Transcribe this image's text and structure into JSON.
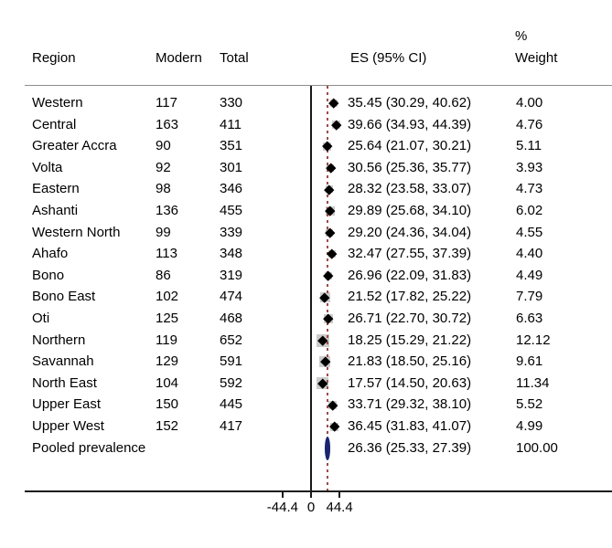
{
  "chart_data": {
    "type": "forest",
    "description": "Forest plot of modern contraceptive prevalence by region with pooled estimate",
    "columns": {
      "region": "Region",
      "modern": "Modern",
      "total": "Total",
      "es": "ES (95% CI)",
      "weight_pct": "%",
      "weight": "Weight"
    },
    "axis": {
      "ticks": [
        -44.4,
        0,
        44.4
      ],
      "tick_labels": [
        "-44.4",
        "0",
        "44.4"
      ],
      "xlim": [
        -44.4,
        44.4
      ],
      "grid": false,
      "pooled_reference_value": 26.36
    },
    "colors": {
      "marker": "#000000",
      "weight_box": "#cbcbcb",
      "pooled_marker": "#1a2470",
      "dashed_line": "#a04a4a",
      "axis_line": "#1a1a1a",
      "header_line": "#8c8c8c"
    },
    "rows": [
      {
        "region": "Western",
        "modern": "117",
        "total": "330",
        "es": 35.45,
        "lo": 30.29,
        "hi": 40.62,
        "es_label": "35.45 (30.29, 40.62)",
        "weight": 4.0,
        "weight_label": "4.00",
        "pooled": false
      },
      {
        "region": "Central",
        "modern": "163",
        "total": "411",
        "es": 39.66,
        "lo": 34.93,
        "hi": 44.39,
        "es_label": "39.66 (34.93, 44.39)",
        "weight": 4.76,
        "weight_label": "4.76",
        "pooled": false
      },
      {
        "region": "Greater Accra",
        "modern": "90",
        "total": "351",
        "es": 25.64,
        "lo": 21.07,
        "hi": 30.21,
        "es_label": "25.64 (21.07, 30.21)",
        "weight": 5.11,
        "weight_label": "5.11",
        "pooled": false
      },
      {
        "region": "Volta",
        "modern": "92",
        "total": "301",
        "es": 30.56,
        "lo": 25.36,
        "hi": 35.77,
        "es_label": "30.56 (25.36, 35.77)",
        "weight": 3.93,
        "weight_label": "3.93",
        "pooled": false
      },
      {
        "region": "Eastern",
        "modern": "98",
        "total": "346",
        "es": 28.32,
        "lo": 23.58,
        "hi": 33.07,
        "es_label": "28.32 (23.58, 33.07)",
        "weight": 4.73,
        "weight_label": "4.73",
        "pooled": false
      },
      {
        "region": "Ashanti",
        "modern": "136",
        "total": "455",
        "es": 29.89,
        "lo": 25.68,
        "hi": 34.1,
        "es_label": "29.89 (25.68, 34.10)",
        "weight": 6.02,
        "weight_label": "6.02",
        "pooled": false
      },
      {
        "region": "Western North",
        "modern": "99",
        "total": "339",
        "es": 29.2,
        "lo": 24.36,
        "hi": 34.04,
        "es_label": "29.20 (24.36, 34.04)",
        "weight": 4.55,
        "weight_label": "4.55",
        "pooled": false
      },
      {
        "region": "Ahafo",
        "modern": "113",
        "total": "348",
        "es": 32.47,
        "lo": 27.55,
        "hi": 37.39,
        "es_label": "32.47 (27.55, 37.39)",
        "weight": 4.4,
        "weight_label": "4.40",
        "pooled": false
      },
      {
        "region": "Bono",
        "modern": "86",
        "total": "319",
        "es": 26.96,
        "lo": 22.09,
        "hi": 31.83,
        "es_label": "26.96 (22.09, 31.83)",
        "weight": 4.49,
        "weight_label": "4.49",
        "pooled": false
      },
      {
        "region": "Bono East",
        "modern": "102",
        "total": "474",
        "es": 21.52,
        "lo": 17.82,
        "hi": 25.22,
        "es_label": "21.52 (17.82, 25.22)",
        "weight": 7.79,
        "weight_label": "7.79",
        "pooled": false
      },
      {
        "region": "Oti",
        "modern": "125",
        "total": "468",
        "es": 26.71,
        "lo": 22.7,
        "hi": 30.72,
        "es_label": "26.71 (22.70, 30.72)",
        "weight": 6.63,
        "weight_label": "6.63",
        "pooled": false
      },
      {
        "region": "Northern",
        "modern": "119",
        "total": "652",
        "es": 18.25,
        "lo": 15.29,
        "hi": 21.22,
        "es_label": "18.25 (15.29, 21.22)",
        "weight": 12.12,
        "weight_label": "12.12",
        "pooled": false
      },
      {
        "region": "Savannah",
        "modern": "129",
        "total": "591",
        "es": 21.83,
        "lo": 18.5,
        "hi": 25.16,
        "es_label": "21.83 (18.50, 25.16)",
        "weight": 9.61,
        "weight_label": "9.61",
        "pooled": false
      },
      {
        "region": "North East",
        "modern": "104",
        "total": "592",
        "es": 17.57,
        "lo": 14.5,
        "hi": 20.63,
        "es_label": "17.57 (14.50, 20.63)",
        "weight": 11.34,
        "weight_label": "11.34",
        "pooled": false
      },
      {
        "region": "Upper East",
        "modern": "150",
        "total": "445",
        "es": 33.71,
        "lo": 29.32,
        "hi": 38.1,
        "es_label": "33.71 (29.32, 38.10)",
        "weight": 5.52,
        "weight_label": "5.52",
        "pooled": false
      },
      {
        "region": "Upper West",
        "modern": "152",
        "total": "417",
        "es": 36.45,
        "lo": 31.83,
        "hi": 41.07,
        "es_label": "36.45 (31.83, 41.07)",
        "weight": 4.99,
        "weight_label": "4.99",
        "pooled": false
      },
      {
        "region": "Pooled prevalence",
        "modern": "",
        "total": "",
        "es": 26.36,
        "lo": 25.33,
        "hi": 27.39,
        "es_label": "26.36 (25.33, 27.39)",
        "weight": 100.0,
        "weight_label": "100.00",
        "pooled": true
      }
    ]
  }
}
